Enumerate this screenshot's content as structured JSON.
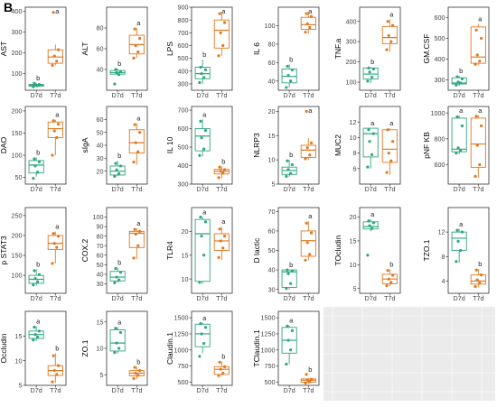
{
  "figure": {
    "panel_label": "B"
  },
  "colors": {
    "D7d": "#2fa67f",
    "T7d": "#e07820",
    "empty_panel": "#ebebeb",
    "empty_grid": "#ffffff"
  },
  "chart_data": [
    {
      "type": "box",
      "ylabel": "AST",
      "ylim": [
        20,
        420
      ],
      "yticks": [
        100,
        200,
        300,
        400
      ],
      "categories": [
        "D7d",
        "T7d"
      ],
      "boxes": [
        {
          "whislo": 35,
          "q1": 40,
          "med": 44,
          "q3": 48,
          "whishi": 55,
          "points": [
            37,
            42,
            45,
            48,
            53
          ]
        },
        {
          "whislo": 140,
          "q1": 150,
          "med": 180,
          "q3": 215,
          "whishi": 240,
          "points": [
            140,
            160,
            185,
            215,
            395
          ]
        }
      ],
      "letters": [
        "b",
        "a"
      ]
    },
    {
      "type": "box",
      "ylabel": "ALT",
      "ylim": [
        20,
        100
      ],
      "yticks": [
        40,
        60,
        80
      ],
      "categories": [
        "D7d",
        "T7d"
      ],
      "boxes": [
        {
          "whislo": 35,
          "q1": 35.5,
          "med": 37,
          "q3": 39,
          "whishi": 41,
          "points": [
            26,
            35,
            37,
            38,
            40
          ]
        },
        {
          "whislo": 51,
          "q1": 55,
          "med": 64,
          "q3": 73,
          "whishi": 80,
          "points": [
            51,
            57,
            63,
            70,
            79
          ]
        }
      ],
      "letters": [
        "b",
        "a"
      ]
    },
    {
      "type": "box",
      "ylabel": "LPS",
      "ylim": [
        250,
        900
      ],
      "yticks": [
        300,
        400,
        500,
        600,
        700,
        800,
        900
      ],
      "categories": [
        "D7d",
        "T7d"
      ],
      "boxes": [
        {
          "whislo": 300,
          "q1": 340,
          "med": 380,
          "q3": 430,
          "whishi": 490,
          "points": [
            310,
            350,
            380,
            410,
            430
          ]
        },
        {
          "whislo": 520,
          "q1": 580,
          "med": 720,
          "q3": 800,
          "whishi": 860,
          "points": [
            520,
            600,
            700,
            780,
            850
          ]
        }
      ],
      "letters": [
        "b",
        "a"
      ]
    },
    {
      "type": "box",
      "ylabel": "IL 6",
      "ylim": [
        30,
        120
      ],
      "yticks": [
        40,
        60,
        80,
        100
      ],
      "categories": [
        "D7d",
        "T7d"
      ],
      "boxes": [
        {
          "whislo": 33,
          "q1": 38,
          "med": 45,
          "q3": 53,
          "whishi": 58,
          "points": [
            33,
            40,
            46,
            52,
            56
          ]
        },
        {
          "whislo": 91,
          "q1": 96,
          "med": 101,
          "q3": 109,
          "whishi": 115,
          "points": [
            93,
            98,
            102,
            110,
            113
          ]
        }
      ],
      "letters": [
        "b",
        "a"
      ]
    },
    {
      "type": "box",
      "ylabel": "TNF.a",
      "ylim": [
        60,
        470
      ],
      "yticks": [
        100,
        200,
        300,
        400
      ],
      "categories": [
        "D7d",
        "T7d"
      ],
      "boxes": [
        {
          "whislo": 95,
          "q1": 115,
          "med": 140,
          "q3": 170,
          "whishi": 175,
          "points": [
            105,
            125,
            150,
            165,
            170
          ]
        },
        {
          "whislo": 250,
          "q1": 290,
          "med": 320,
          "q3": 375,
          "whishi": 410,
          "points": [
            260,
            300,
            330,
            380,
            400
          ]
        }
      ],
      "letters": [
        "b",
        "a"
      ]
    },
    {
      "type": "box",
      "ylabel": "GM.CSF",
      "ylim": [
        250,
        650
      ],
      "yticks": [
        300,
        400,
        500,
        600
      ],
      "categories": [
        "D7d",
        "T7d"
      ],
      "boxes": [
        {
          "whislo": 270,
          "q1": 280,
          "med": 285,
          "q3": 310,
          "whishi": 320,
          "points": [
            275,
            285,
            290,
            305,
            315
          ]
        },
        {
          "whislo": 370,
          "q1": 380,
          "med": 410,
          "q3": 555,
          "whishi": 570,
          "points": [
            375,
            390,
            420,
            500,
            540
          ]
        }
      ],
      "letters": [
        "b",
        "a"
      ]
    },
    {
      "type": "box",
      "ylabel": "DAO",
      "ylim": [
        35,
        210
      ],
      "yticks": [
        50,
        100,
        150,
        200
      ],
      "categories": [
        "D7d",
        "T7d"
      ],
      "boxes": [
        {
          "whislo": 52,
          "q1": 60,
          "med": 78,
          "q3": 88,
          "whishi": 95,
          "points": [
            48,
            62,
            76,
            85,
            92
          ]
        },
        {
          "whislo": 100,
          "q1": 140,
          "med": 160,
          "q3": 175,
          "whishi": 180,
          "points": [
            100,
            140,
            155,
            170,
            178
          ]
        }
      ],
      "letters": [
        "b",
        "a"
      ]
    },
    {
      "type": "box",
      "ylabel": "sIgA",
      "ylim": [
        10,
        70
      ],
      "yticks": [
        20,
        30,
        40,
        50,
        60
      ],
      "categories": [
        "D7d",
        "T7d"
      ],
      "boxes": [
        {
          "whislo": 16,
          "q1": 17,
          "med": 20,
          "q3": 24,
          "whishi": 28,
          "points": [
            16,
            18,
            21,
            24,
            26
          ]
        },
        {
          "whislo": 25,
          "q1": 34,
          "med": 42,
          "q3": 52,
          "whishi": 57,
          "points": [
            27,
            35,
            42,
            50,
            56
          ]
        }
      ],
      "letters": [
        "b",
        "a"
      ]
    },
    {
      "type": "box",
      "ylabel": "IL 10",
      "ylim": [
        300,
        720
      ],
      "yticks": [
        300,
        400,
        500,
        600,
        700
      ],
      "categories": [
        "D7d",
        "T7d"
      ],
      "boxes": [
        {
          "whislo": 450,
          "q1": 480,
          "med": 560,
          "q3": 600,
          "whishi": 650,
          "points": [
            455,
            490,
            550,
            590,
            640
          ]
        },
        {
          "whislo": 330,
          "q1": 355,
          "med": 370,
          "q3": 380,
          "whishi": 395,
          "points": [
            335,
            360,
            370,
            378,
            392
          ]
        }
      ],
      "letters": [
        "a",
        "b"
      ]
    },
    {
      "type": "box",
      "ylabel": "NLRP3",
      "ylim": [
        5,
        21
      ],
      "yticks": [
        5,
        10,
        15,
        20
      ],
      "categories": [
        "D7d",
        "T7d"
      ],
      "boxes": [
        {
          "whislo": 6.5,
          "q1": 7,
          "med": 7.8,
          "q3": 8.5,
          "whishi": 10,
          "points": [
            6.6,
            7.2,
            8,
            9,
            9.8
          ]
        },
        {
          "whislo": 10,
          "q1": 10.5,
          "med": 12,
          "q3": 13,
          "whishi": 14.5,
          "points": [
            10.2,
            11,
            12.5,
            13.5,
            20
          ]
        }
      ],
      "letters": [
        "b",
        "a"
      ]
    },
    {
      "type": "box",
      "ylabel": "MUC2",
      "ylim": [
        4,
        14
      ],
      "yticks": [
        6,
        8,
        10,
        12
      ],
      "categories": [
        "D7d",
        "T7d"
      ],
      "boxes": [
        {
          "whislo": 6,
          "q1": 7.5,
          "med": 10.5,
          "q3": 11.2,
          "whishi": 11.2,
          "points": [
            6.2,
            7.8,
            9.5,
            10.5,
            11
          ]
        },
        {
          "whislo": 5.2,
          "q1": 6.8,
          "med": 8.5,
          "q3": 11,
          "whishi": 11.2,
          "points": [
            5.5,
            7,
            8,
            9.5,
            11
          ]
        }
      ],
      "letters": [
        "a",
        "a"
      ]
    },
    {
      "type": "box",
      "ylabel": "pNF KB",
      "ylim": [
        450,
        1050
      ],
      "yticks": [
        600,
        800,
        1000
      ],
      "categories": [
        "D7d",
        "T7d"
      ],
      "boxes": [
        {
          "whislo": 680,
          "q1": 700,
          "med": 720,
          "q3": 960,
          "whishi": 980,
          "points": [
            690,
            710,
            730,
            900,
            970
          ]
        },
        {
          "whislo": 500,
          "q1": 580,
          "med": 760,
          "q3": 960,
          "whishi": 980,
          "points": [
            510,
            600,
            750,
            900,
            975
          ]
        }
      ],
      "letters": [
        "a",
        "a"
      ]
    },
    {
      "type": "box",
      "ylabel": "p STAT3",
      "ylim": [
        55,
        270
      ],
      "yticks": [
        100,
        150,
        200,
        250
      ],
      "categories": [
        "D7d",
        "T7d"
      ],
      "boxes": [
        {
          "whislo": 75,
          "q1": 80,
          "med": 90,
          "q3": 100,
          "whishi": 115,
          "points": [
            76,
            84,
            92,
            102,
            112
          ]
        },
        {
          "whislo": 130,
          "q1": 165,
          "med": 180,
          "q3": 200,
          "whishi": 210,
          "points": [
            130,
            170,
            180,
            198,
            205
          ]
        }
      ],
      "letters": [
        "b",
        "a"
      ]
    },
    {
      "type": "box",
      "ylabel": "COX.2",
      "ylim": [
        20,
        110
      ],
      "yticks": [
        30,
        40,
        50,
        60,
        70,
        80,
        90,
        100
      ],
      "categories": [
        "D7d",
        "T7d"
      ],
      "boxes": [
        {
          "whislo": 31,
          "q1": 33,
          "med": 37,
          "q3": 43,
          "whishi": 47,
          "points": [
            31,
            34,
            37,
            42,
            46
          ]
        },
        {
          "whislo": 56,
          "q1": 68,
          "med": 83,
          "q3": 85,
          "whishi": 88,
          "points": [
            57,
            70,
            82,
            85,
            87
          ]
        }
      ],
      "letters": [
        "b",
        "a"
      ]
    },
    {
      "type": "box",
      "ylabel": "TLR4",
      "ylim": [
        7,
        25
      ],
      "yticks": [
        10,
        15,
        20
      ],
      "categories": [
        "D7d",
        "T7d"
      ],
      "boxes": [
        {
          "whislo": 9,
          "q1": 9.5,
          "med": 19.5,
          "q3": 22.5,
          "whishi": 23,
          "points": [
            9.3,
            15,
            19,
            22,
            23
          ]
        },
        {
          "whislo": 14,
          "q1": 16,
          "med": 18,
          "q3": 19.5,
          "whishi": 21,
          "points": [
            14.5,
            16.5,
            18,
            19,
            20.5
          ]
        }
      ],
      "letters": [
        "a",
        "a"
      ]
    },
    {
      "type": "box",
      "ylabel": "D lactic",
      "ylim": [
        28,
        72
      ],
      "yticks": [
        30,
        40,
        50,
        60,
        70
      ],
      "categories": [
        "D7d",
        "T7d"
      ],
      "boxes": [
        {
          "whislo": 30,
          "q1": 31,
          "med": 39,
          "q3": 40,
          "whishi": 40,
          "points": [
            30.5,
            33,
            38,
            39.5,
            40
          ]
        },
        {
          "whislo": 45,
          "q1": 47,
          "med": 55,
          "q3": 60,
          "whishi": 65,
          "points": [
            45,
            48,
            54,
            59,
            64
          ]
        }
      ],
      "letters": [
        "b",
        "a"
      ]
    },
    {
      "type": "box",
      "ylabel": "TOcludin",
      "ylim": [
        4,
        22
      ],
      "yticks": [
        5,
        10,
        15,
        20
      ],
      "categories": [
        "D7d",
        "T7d"
      ],
      "boxes": [
        {
          "whislo": 17,
          "q1": 17.5,
          "med": 18,
          "q3": 19,
          "whishi": 19.5,
          "points": [
            12,
            17.6,
            18.2,
            18.8,
            19.2
          ]
        },
        {
          "whislo": 5.5,
          "q1": 6,
          "med": 7,
          "q3": 8,
          "whishi": 9,
          "points": [
            5.6,
            6.3,
            7,
            7.8,
            8.8
          ]
        }
      ],
      "letters": [
        "a",
        "b"
      ]
    },
    {
      "type": "box",
      "ylabel": "TZO.1",
      "ylim": [
        2,
        16
      ],
      "yticks": [
        4,
        8,
        12
      ],
      "categories": [
        "D7d",
        "T7d"
      ],
      "boxes": [
        {
          "whislo": 7,
          "q1": 9,
          "med": 11,
          "q3": 12,
          "whishi": 12.5,
          "points": [
            7.2,
            9,
            10.5,
            12,
            12.3
          ]
        },
        {
          "whislo": 3,
          "q1": 3.5,
          "med": 4,
          "q3": 5,
          "whishi": 6,
          "points": [
            3.1,
            3.7,
            4.2,
            5,
            5.8
          ]
        }
      ],
      "letters": [
        "a",
        "b"
      ]
    },
    {
      "type": "box",
      "ylabel": "Occludin",
      "ylim": [
        5,
        20
      ],
      "yticks": [
        5,
        10,
        15
      ],
      "categories": [
        "D7d",
        "T7d"
      ],
      "boxes": [
        {
          "whislo": 14,
          "q1": 14.5,
          "med": 15.3,
          "q3": 16,
          "whishi": 17,
          "points": [
            14.2,
            14.8,
            15.3,
            16,
            16.8
          ]
        },
        {
          "whislo": 5.5,
          "q1": 7,
          "med": 8,
          "q3": 9,
          "whishi": 11.5,
          "points": [
            5.7,
            7.2,
            8,
            9,
            11
          ]
        }
      ],
      "letters": [
        "a",
        "b"
      ]
    },
    {
      "type": "box",
      "ylabel": "ZO.1",
      "ylim": [
        3,
        17
      ],
      "yticks": [
        5,
        10,
        15
      ],
      "categories": [
        "D7d",
        "T7d"
      ],
      "boxes": [
        {
          "whislo": 9,
          "q1": 9.5,
          "med": 11,
          "q3": 13.5,
          "whishi": 14,
          "points": [
            9.2,
            10,
            11,
            13,
            13.8
          ]
        },
        {
          "whislo": 4.2,
          "q1": 4.8,
          "med": 5.3,
          "q3": 5.8,
          "whishi": 6.5,
          "points": [
            4.3,
            4.9,
            5.3,
            5.8,
            6.4
          ]
        }
      ],
      "letters": [
        "a",
        "b"
      ]
    },
    {
      "type": "box",
      "ylabel": "Claudin.1",
      "ylim": [
        450,
        1600
      ],
      "yticks": [
        500,
        750,
        1000,
        1250,
        1500
      ],
      "categories": [
        "D7d",
        "T7d"
      ],
      "boxes": [
        {
          "whislo": 950,
          "q1": 1050,
          "med": 1250,
          "q3": 1400,
          "whishi": 1420,
          "points": [
            900,
            1100,
            1250,
            1350,
            1410
          ]
        },
        {
          "whislo": 600,
          "q1": 620,
          "med": 700,
          "q3": 740,
          "whishi": 820,
          "points": [
            600,
            640,
            700,
            740,
            810
          ]
        }
      ],
      "letters": [
        "a",
        "b"
      ]
    },
    {
      "type": "box",
      "ylabel": "TClaudin.1",
      "ylim": [
        450,
        1600
      ],
      "yticks": [
        500,
        750,
        1000,
        1250,
        1500
      ],
      "categories": [
        "D7d",
        "T7d"
      ],
      "boxes": [
        {
          "whislo": 780,
          "q1": 950,
          "med": 1150,
          "q3": 1350,
          "whishi": 1380,
          "points": [
            780,
            1000,
            1150,
            1300,
            1370
          ]
        },
        {
          "whislo": 480,
          "q1": 500,
          "med": 530,
          "q3": 550,
          "whishi": 560,
          "points": [
            485,
            505,
            530,
            545,
            620
          ]
        }
      ],
      "letters": [
        "a",
        "b"
      ]
    }
  ]
}
